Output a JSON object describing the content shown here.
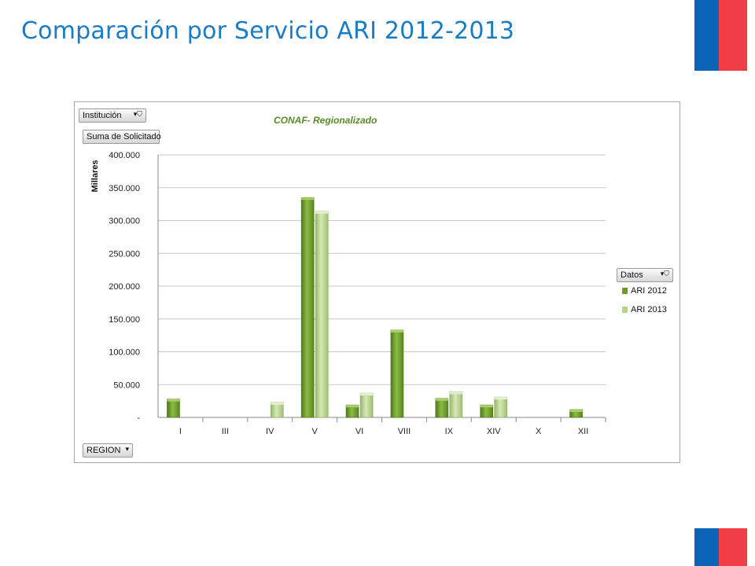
{
  "slide": {
    "title": "Comparación por Servicio ARI 2012-2013"
  },
  "chart_controls": {
    "filter_button": "Institución",
    "value_button": "Suma de Solicitado",
    "axis_button": "REGION",
    "legend_button": "Datos"
  },
  "colors": {
    "title": "#1a7dc3",
    "flag_blue": "#0b64b5",
    "flag_red": "#ef3e46",
    "series_2012": "#6e9a2c",
    "series_2013": "#b7d38a"
  },
  "chart_data": {
    "type": "bar",
    "title": "CONAF- Regionalizado",
    "xlabel": "",
    "ylabel": "Millares",
    "ylim": [
      0,
      400000
    ],
    "yticks": [
      {
        "value": 0,
        "label": "-"
      },
      {
        "value": 50000,
        "label": "50.000"
      },
      {
        "value": 100000,
        "label": "100.000"
      },
      {
        "value": 150000,
        "label": "150.000"
      },
      {
        "value": 200000,
        "label": "200.000"
      },
      {
        "value": 250000,
        "label": "250.000"
      },
      {
        "value": 300000,
        "label": "300.000"
      },
      {
        "value": 350000,
        "label": "350.000"
      },
      {
        "value": 400000,
        "label": "400.000"
      }
    ],
    "grid": true,
    "legend_position": "right",
    "categories": [
      "I",
      "III",
      "IV",
      "V",
      "VI",
      "VIII",
      "IX",
      "XIV",
      "X",
      "XII"
    ],
    "series": [
      {
        "name": "ARI 2012",
        "values": [
          28000,
          0,
          0,
          335000,
          19000,
          133000,
          29000,
          19000,
          0,
          12000
        ]
      },
      {
        "name": "ARI 2013",
        "values": [
          0,
          0,
          23000,
          314000,
          37000,
          0,
          39000,
          31000,
          0,
          0
        ]
      }
    ]
  }
}
